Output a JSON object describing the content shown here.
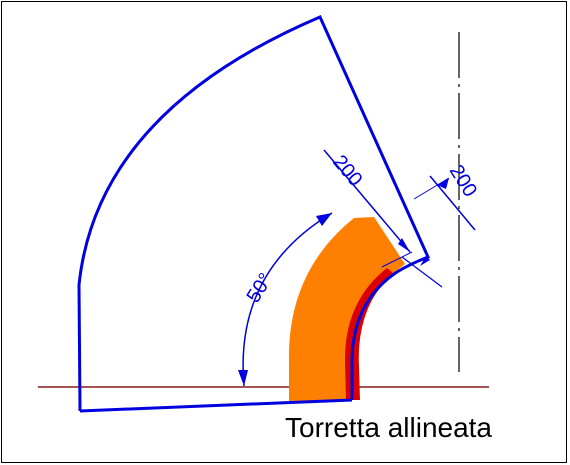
{
  "caption": "Torretta allineata",
  "dimensions": {
    "angle_label": "50°",
    "radial_label": "200",
    "edge_label": "200"
  },
  "colors": {
    "outline": "#0000e0",
    "orange": "#ff8000",
    "red": "#dd0000",
    "baseline": "#8b1a1a",
    "centerline": "#000000"
  }
}
